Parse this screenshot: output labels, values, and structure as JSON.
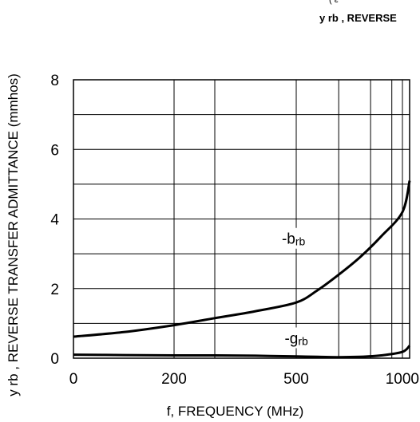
{
  "header_fragments": {
    "top": "( ε",
    "title": "y rb , REVERSE"
  },
  "chart_data": {
    "type": "line",
    "title": "",
    "xlabel": "f, FREQUENCY (MHz)",
    "ylabel": "y rb , REVERSE TRANSFER ADMITTANCE (mmhos)",
    "xlim": [
      0,
      1100
    ],
    "ylim": [
      0,
      8
    ],
    "grid": true,
    "yticks": [
      0,
      2,
      4,
      6,
      8
    ],
    "xtick_labels": [
      {
        "value": 0,
        "label": "0"
      },
      {
        "value": 200,
        "label": "200"
      },
      {
        "value": 500,
        "label": "500"
      },
      {
        "value": 1000,
        "label": "1000"
      }
    ],
    "series": [
      {
        "name": "-brb",
        "x": [
          0,
          100,
          200,
          300,
          400,
          500,
          600,
          700,
          800,
          900,
          1000,
          1100
        ],
        "y": [
          0.62,
          0.75,
          0.95,
          1.15,
          1.35,
          1.6,
          1.95,
          2.4,
          2.9,
          3.5,
          4.2,
          5.1
        ]
      },
      {
        "name": "-grb",
        "x": [
          0,
          100,
          200,
          300,
          400,
          500,
          600,
          700,
          800,
          900,
          1000,
          1100
        ],
        "y": [
          0.1,
          0.09,
          0.08,
          0.08,
          0.07,
          0.05,
          0.04,
          0.03,
          0.04,
          0.08,
          0.18,
          0.36
        ]
      }
    ]
  }
}
